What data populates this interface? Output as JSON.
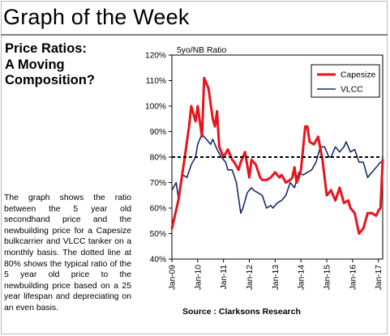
{
  "header": {
    "title": "Graph of the Week"
  },
  "subtitle": {
    "lines": [
      "Price Ratios:",
      "A Moving",
      "Composition?"
    ]
  },
  "description": "The graph shows the ratio between the 5 year old secondhand price and the newbuilding price for a Capesize bulkcarrier and VLCC tanker on a monthly basis. The dotted line at 80% shows the typical ratio of the 5 year old price to the newbuilding price based on a 25 year lifespan and depreciating on an even basis.",
  "source": "Source : Clarksons Research",
  "colors": {
    "capesize": "#e8141b",
    "vlcc": "#1b2a6b",
    "reference": "#000000"
  },
  "chart_data": {
    "type": "line",
    "ylabel": "5yo/NB Ratio",
    "ylim": [
      40,
      120
    ],
    "yticks": [
      40,
      50,
      60,
      70,
      80,
      90,
      100,
      110,
      120
    ],
    "ytick_labels": [
      "40%",
      "50%",
      "60%",
      "70%",
      "80%",
      "90%",
      "100%",
      "110%",
      "120%"
    ],
    "x_start": "Jan-09",
    "x_end": "Mar-17",
    "xtick_labels": [
      "Jan-09",
      "Jan-10",
      "Jan-11",
      "Jan-12",
      "Jan-13",
      "Jan-14",
      "Jan-15",
      "Jan-16",
      "Jan-17"
    ],
    "reference_line": {
      "value": 80,
      "style": "dashed"
    },
    "legend": {
      "position": "top-right"
    },
    "grid": false,
    "series": [
      {
        "name": "Capesize",
        "color": "#e8141b",
        "x": [
          "Jan-09",
          "Apr-09",
          "Jul-09",
          "Sep-09",
          "Oct-09",
          "Dec-09",
          "Jan-10",
          "Mar-10",
          "Apr-10",
          "Jun-10",
          "Aug-10",
          "Sep-10",
          "Oct-10",
          "Nov-10",
          "Jan-11",
          "Mar-11",
          "May-11",
          "Jun-11",
          "Aug-11",
          "Sep-11",
          "Nov-11",
          "Jan-12",
          "Feb-12",
          "Apr-12",
          "Jun-12",
          "Jul-12",
          "Sep-12",
          "Nov-12",
          "Jan-13",
          "Mar-13",
          "Apr-13",
          "Jun-13",
          "Aug-13",
          "Sep-13",
          "Oct-13",
          "Nov-13",
          "Dec-13",
          "Jan-14",
          "Mar-14",
          "Apr-14",
          "May-14",
          "Jul-14",
          "Sep-14",
          "Nov-14",
          "Jan-15",
          "Mar-15",
          "May-15",
          "Jul-15",
          "Sep-15",
          "Nov-15",
          "Dec-15",
          "Feb-16",
          "Apr-16",
          "Jun-16",
          "Aug-16",
          "Oct-16",
          "Dec-16",
          "Jan-17",
          "Feb-17",
          "Mar-17"
        ],
        "values": [
          52,
          63,
          80,
          92,
          100,
          94,
          100,
          88,
          111,
          107,
          95,
          92,
          98,
          84,
          80,
          83,
          79,
          78,
          75,
          78,
          82,
          72,
          79,
          77,
          72,
          71,
          71,
          72,
          74,
          72,
          73,
          70,
          71,
          72,
          76,
          70,
          72,
          75,
          92,
          92,
          86,
          85,
          88,
          79,
          65,
          67,
          63,
          68,
          62,
          63,
          60,
          58,
          50,
          52,
          58,
          58,
          57,
          59,
          60,
          79
        ]
      },
      {
        "name": "VLCC",
        "color": "#1b2a6b",
        "x": [
          "Jan-09",
          "Mar-09",
          "Apr-09",
          "Jun-09",
          "Aug-09",
          "Oct-09",
          "Dec-09",
          "Jan-10",
          "Mar-10",
          "May-10",
          "Jul-10",
          "Aug-10",
          "Oct-10",
          "Dec-10",
          "Feb-11",
          "Mar-11",
          "May-11",
          "Jul-11",
          "Sep-11",
          "Oct-11",
          "Dec-11",
          "Feb-12",
          "Mar-12",
          "May-12",
          "Jul-12",
          "Sep-12",
          "Nov-12",
          "Dec-12",
          "Feb-13",
          "Apr-13",
          "Jun-13",
          "Aug-13",
          "Oct-13",
          "Dec-13",
          "Feb-14",
          "Apr-14",
          "Jun-14",
          "Aug-14",
          "Oct-14",
          "Dec-14",
          "Feb-15",
          "Mar-15",
          "May-15",
          "Jul-15",
          "Sep-15",
          "Oct-15",
          "Dec-15",
          "Feb-16",
          "Apr-16",
          "Jun-16",
          "Aug-16",
          "Oct-16",
          "Dec-16",
          "Feb-17",
          "Mar-17"
        ],
        "values": [
          67,
          70,
          64,
          73,
          72,
          77,
          80,
          85,
          89,
          87,
          85,
          87,
          83,
          80,
          78,
          75,
          75,
          70,
          58,
          60,
          66,
          68,
          67,
          66,
          65,
          60,
          61,
          60,
          62,
          63,
          65,
          70,
          68,
          74,
          73,
          74,
          75,
          78,
          84,
          84,
          80,
          80,
          84,
          82,
          84,
          86,
          82,
          83,
          78,
          78,
          72,
          74,
          76,
          78,
          78
        ]
      }
    ]
  }
}
